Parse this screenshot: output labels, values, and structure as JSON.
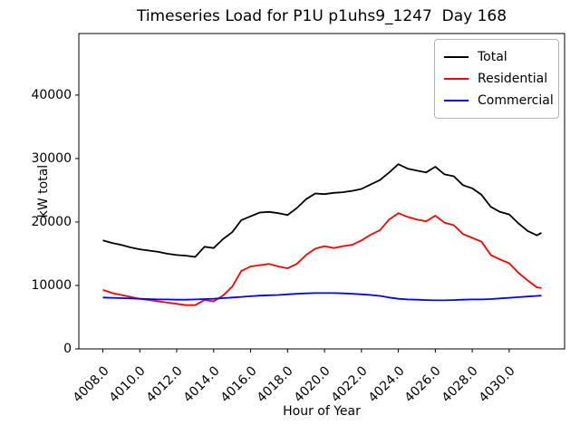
{
  "title": "Timeseries Load for P1U p1uhs9_1247  Day 168",
  "chart_data": {
    "type": "line",
    "title": "Timeseries Load for P1U p1uhs9_1247  Day 168",
    "xlabel": "Hour of Year",
    "ylabel": "kW total",
    "xlim": [
      4006.7,
      4033.0
    ],
    "ylim": [
      0,
      49700
    ],
    "grid": false,
    "legend_position": "upper right",
    "x_ticks": [
      4008,
      4010,
      4012,
      4014,
      4016,
      4018,
      4020,
      4022,
      4024,
      4026,
      4028,
      4030
    ],
    "x_tick_labels": [
      "4008.0",
      "4010.0",
      "4012.0",
      "4014.0",
      "4016.0",
      "4018.0",
      "4020.0",
      "4022.0",
      "4024.0",
      "4026.0",
      "4028.0",
      "4030.0"
    ],
    "y_ticks": [
      0,
      10000,
      20000,
      30000,
      40000
    ],
    "y_tick_labels": [
      "0",
      "10000",
      "20000",
      "30000",
      "40000"
    ],
    "x": [
      4008.0,
      4008.5,
      4009.0,
      4009.5,
      4010.0,
      4010.5,
      4011.0,
      4011.5,
      4012.0,
      4012.5,
      4013.0,
      4013.5,
      4014.0,
      4014.5,
      4015.0,
      4015.5,
      4016.0,
      4016.5,
      4017.0,
      4017.5,
      4018.0,
      4018.5,
      4019.0,
      4019.5,
      4020.0,
      4020.5,
      4021.0,
      4021.5,
      4022.0,
      4022.5,
      4023.0,
      4023.5,
      4024.0,
      4024.5,
      4025.0,
      4025.5,
      4026.0,
      4026.5,
      4027.0,
      4027.5,
      4028.0,
      4028.5,
      4029.0,
      4029.5,
      4030.0,
      4030.5,
      4031.0,
      4031.5,
      4031.75
    ],
    "series": [
      {
        "name": "Total",
        "color": "#000000",
        "values": [
          17100,
          16700,
          16400,
          16000,
          15700,
          15500,
          15300,
          15000,
          14800,
          14700,
          14500,
          16100,
          15900,
          17300,
          18400,
          20300,
          20900,
          21500,
          21600,
          21400,
          21100,
          22200,
          23600,
          24500,
          24400,
          24600,
          24700,
          24900,
          25200,
          25900,
          26600,
          27800,
          29100,
          28400,
          28100,
          27800,
          28700,
          27500,
          27200,
          25800,
          25300,
          24300,
          22400,
          21600,
          21200,
          19800,
          18600,
          17900,
          18300
        ]
      },
      {
        "name": "Residential",
        "color": "#ff0000",
        "values": [
          9300,
          8800,
          8500,
          8200,
          7900,
          7700,
          7500,
          7300,
          7100,
          6900,
          6900,
          7700,
          7500,
          8400,
          9800,
          12300,
          13000,
          13200,
          13400,
          13000,
          12700,
          13400,
          14800,
          15800,
          16200,
          15900,
          16200,
          16400,
          17100,
          18000,
          18700,
          20400,
          21400,
          20800,
          20400,
          20100,
          21000,
          19900,
          19500,
          18100,
          17500,
          16900,
          14800,
          14100,
          13500,
          12000,
          10800,
          9700,
          9600
        ]
      },
      {
        "name": "Commercial",
        "color": "#0000ff",
        "values": [
          8100,
          8050,
          8000,
          7950,
          7900,
          7850,
          7800,
          7800,
          7750,
          7750,
          7800,
          7850,
          7900,
          8000,
          8100,
          8200,
          8300,
          8400,
          8450,
          8500,
          8600,
          8700,
          8750,
          8800,
          8800,
          8800,
          8750,
          8700,
          8600,
          8500,
          8350,
          8100,
          7900,
          7800,
          7750,
          7700,
          7650,
          7650,
          7700,
          7750,
          7800,
          7800,
          7850,
          7950,
          8050,
          8150,
          8250,
          8350,
          8400
        ]
      }
    ]
  },
  "legend": {
    "entries": [
      {
        "label": "Total",
        "color": "#000000"
      },
      {
        "label": "Residential",
        "color": "#ff0000"
      },
      {
        "label": "Commercial",
        "color": "#0000ff"
      }
    ]
  }
}
